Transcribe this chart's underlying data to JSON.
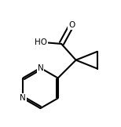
{
  "background_color": "#ffffff",
  "line_color": "#000000",
  "line_width": 1.5,
  "font_size_label": 7.5,
  "xlim": [
    0,
    10
  ],
  "ylim": [
    0,
    10
  ]
}
